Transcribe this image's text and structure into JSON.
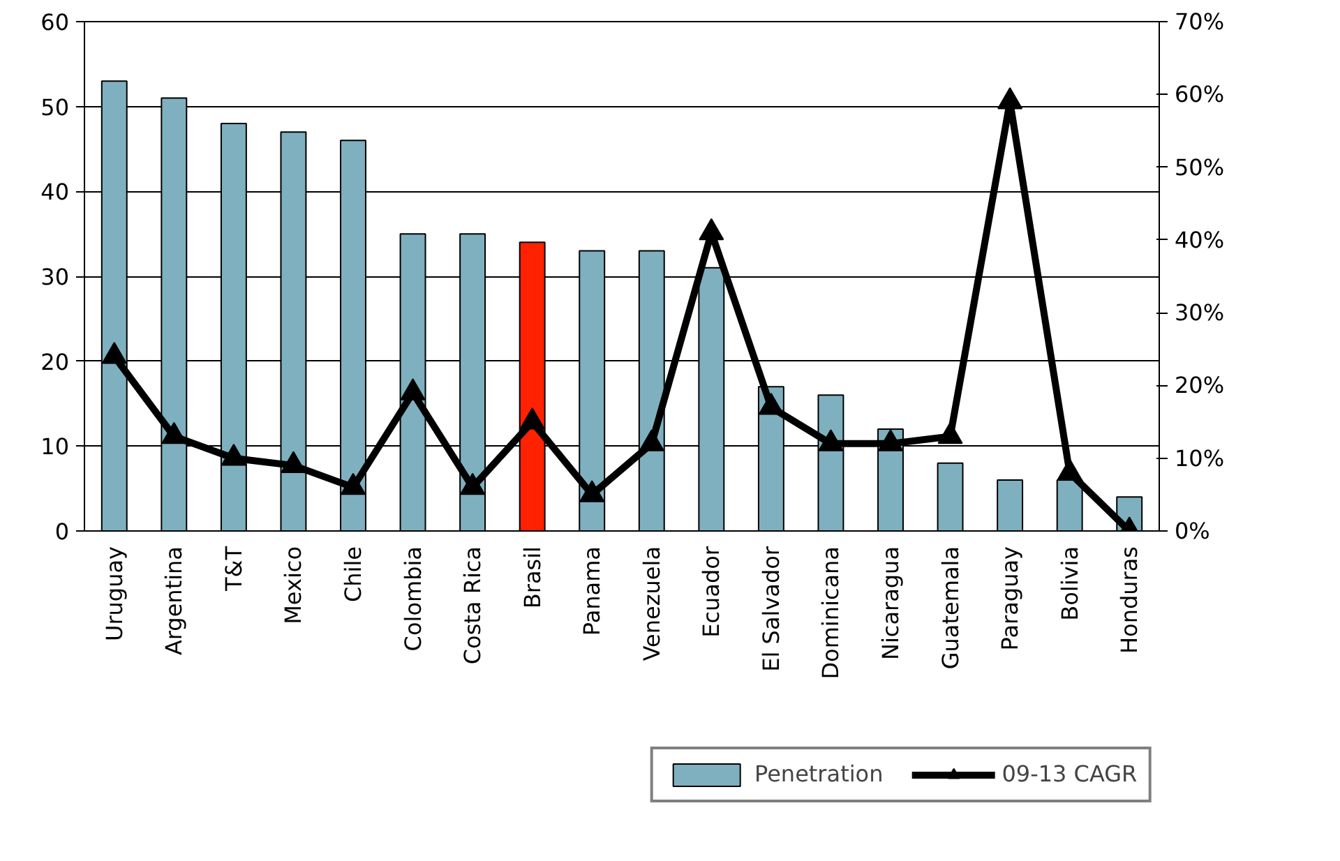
{
  "chart_data": {
    "type": "bar",
    "categories": [
      "Uruguay",
      "Argentina",
      "T&T",
      "Mexico",
      "Chile",
      "Colombia",
      "Costa Rica",
      "Brasil",
      "Panama",
      "Venezuela",
      "Ecuador",
      "El Salvador",
      "Dominicana",
      "Nicaragua",
      "Guatemala",
      "Paraguay",
      "Bolivia",
      "Honduras"
    ],
    "series": [
      {
        "name": "Penetration",
        "colors": [
          "#7fb0bf",
          "#7fb0bf",
          "#7fb0bf",
          "#7fb0bf",
          "#7fb0bf",
          "#7fb0bf",
          "#7fb0bf",
          "#ff2200",
          "#7fb0bf",
          "#7fb0bf",
          "#7fb0bf",
          "#7fb0bf",
          "#7fb0bf",
          "#7fb0bf",
          "#7fb0bf",
          "#7fb0bf",
          "#7fb0bf",
          "#7fb0bf"
        ],
        "values": [
          53,
          51,
          48,
          47,
          46,
          35,
          35,
          34,
          33,
          33,
          31,
          17,
          16,
          12,
          8,
          6,
          6,
          4
        ]
      },
      {
        "name": "09-13 CAGR",
        "type": "line",
        "axis": "y2",
        "color": "#000000",
        "marker": "triangle",
        "line_style": "solid",
        "values": [
          24,
          13,
          10,
          9,
          6,
          19,
          6,
          15,
          5,
          12,
          41,
          17,
          12,
          12,
          13,
          59,
          8,
          0
        ]
      }
    ],
    "ylim": [
      0,
      60
    ],
    "yticks": [
      0,
      10,
      20,
      30,
      40,
      50,
      60
    ],
    "y2lim": [
      0,
      70
    ],
    "y2ticks": [
      {
        "value": 0,
        "label": "0%"
      },
      {
        "value": 10,
        "label": "10%"
      },
      {
        "value": 20,
        "label": "20%"
      },
      {
        "value": 30,
        "label": "30%"
      },
      {
        "value": 40,
        "label": "40%"
      },
      {
        "value": 50,
        "label": "50%"
      },
      {
        "value": 60,
        "label": "60%"
      },
      {
        "value": 70,
        "label": "70%"
      }
    ],
    "grid": "y",
    "legend": "bottom"
  }
}
